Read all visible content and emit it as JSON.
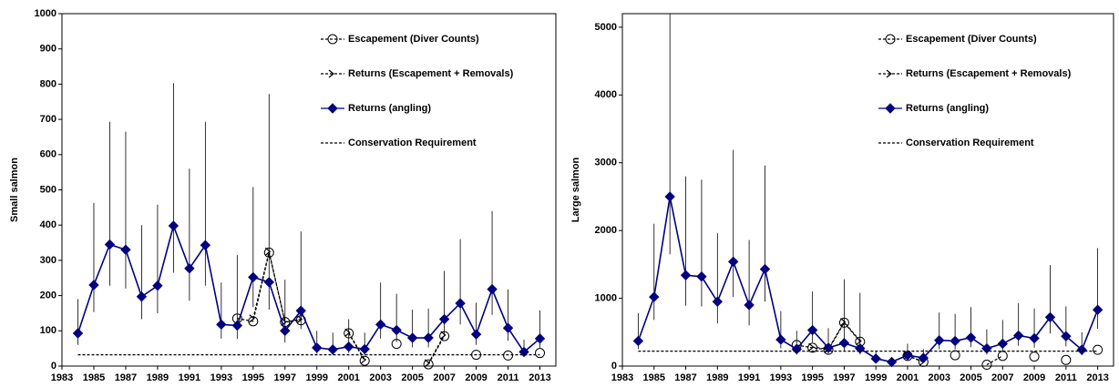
{
  "chart_data": [
    {
      "type": "line",
      "y_label": "Small salmon",
      "x": [
        1984,
        1985,
        1986,
        1987,
        1988,
        1989,
        1990,
        1991,
        1992,
        1993,
        1994,
        1995,
        1996,
        1997,
        1998,
        1999,
        2000,
        2001,
        2002,
        2003,
        2004,
        2005,
        2006,
        2007,
        2008,
        2009,
        2010,
        2011,
        2012,
        2013
      ],
      "xlim": [
        1983,
        2014
      ],
      "xticks": [
        1983,
        1985,
        1987,
        1989,
        1991,
        1993,
        1995,
        1997,
        1999,
        2001,
        2003,
        2005,
        2007,
        2009,
        2011,
        2013
      ],
      "ylim": [
        0,
        1000
      ],
      "yticks": [
        0,
        100,
        200,
        300,
        400,
        500,
        600,
        700,
        800,
        900,
        1000
      ],
      "legend": "upper right",
      "series": [
        {
          "name": "Escapement (Diver Counts)",
          "color": "#000000",
          "marker": "circle-open",
          "dash": true,
          "values": [
            null,
            null,
            null,
            null,
            null,
            null,
            null,
            null,
            null,
            null,
            135,
            127,
            322,
            125,
            130,
            null,
            null,
            93,
            15,
            null,
            63,
            null,
            5,
            85,
            null,
            32,
            null,
            30,
            null,
            37
          ]
        },
        {
          "name": "Returns (Escapement + Removals)",
          "color": "#000000",
          "marker": "arrow",
          "dash": true,
          "values": [
            null,
            null,
            null,
            null,
            null,
            null,
            null,
            null,
            null,
            null,
            null,
            135,
            325,
            125,
            133,
            null,
            null,
            95,
            18,
            null,
            null,
            null,
            8,
            88,
            null,
            null,
            null,
            null,
            null,
            null
          ]
        },
        {
          "name": "Returns (angling)",
          "color": "#000080",
          "marker": "diamond",
          "dash": false,
          "values": [
            93,
            230,
            345,
            330,
            197,
            228,
            398,
            277,
            343,
            118,
            115,
            252,
            238,
            100,
            157,
            52,
            47,
            55,
            48,
            118,
            102,
            80,
            80,
            133,
            178,
            90,
            218,
            108,
            40,
            78
          ],
          "upper": [
            190,
            463,
            693,
            665,
            400,
            458,
            803,
            560,
            693,
            237,
            315,
            508,
            772,
            245,
            382,
            100,
            95,
            133,
            95,
            237,
            205,
            160,
            163,
            270,
            360,
            180,
            440,
            217,
            75,
            158
          ],
          "lower": [
            60,
            153,
            228,
            220,
            133,
            150,
            265,
            185,
            228,
            78,
            77,
            167,
            160,
            67,
            105,
            35,
            32,
            37,
            32,
            78,
            68,
            53,
            53,
            90,
            118,
            60,
            145,
            72,
            27,
            52
          ]
        },
        {
          "name": "Conservation Requirement",
          "color": "#000000",
          "marker": "none",
          "dash": true,
          "values": [
            32,
            32,
            32,
            32,
            32,
            32,
            32,
            32,
            32,
            32,
            32,
            32,
            32,
            32,
            32,
            32,
            32,
            32,
            32,
            32,
            32,
            32,
            32,
            32,
            32,
            32,
            32,
            32,
            32,
            32
          ]
        }
      ]
    },
    {
      "type": "line",
      "y_label": "Large salmon",
      "x": [
        1984,
        1985,
        1986,
        1987,
        1988,
        1989,
        1990,
        1991,
        1992,
        1993,
        1994,
        1995,
        1996,
        1997,
        1998,
        1999,
        2000,
        2001,
        2002,
        2003,
        2004,
        2005,
        2006,
        2007,
        2008,
        2009,
        2010,
        2011,
        2012,
        2013
      ],
      "xlim": [
        1983,
        2014
      ],
      "xticks": [
        1983,
        1985,
        1987,
        1989,
        1991,
        1993,
        1995,
        1997,
        1999,
        2001,
        2003,
        2005,
        2007,
        2009,
        2011,
        2013
      ],
      "ylim": [
        0,
        5200
      ],
      "yticks": [
        0,
        1000,
        2000,
        3000,
        4000,
        5000
      ],
      "legend": "upper right",
      "series": [
        {
          "name": "Escapement (Diver Counts)",
          "color": "#000000",
          "marker": "circle-open",
          "dash": true,
          "values": [
            null,
            null,
            null,
            null,
            null,
            null,
            null,
            null,
            null,
            null,
            310,
            270,
            240,
            640,
            360,
            null,
            null,
            150,
            60,
            null,
            160,
            null,
            20,
            150,
            null,
            140,
            null,
            90,
            null,
            240
          ]
        },
        {
          "name": "Returns (Escapement + Removals)",
          "color": "#000000",
          "marker": "arrow",
          "dash": true,
          "values": [
            null,
            null,
            null,
            null,
            null,
            null,
            null,
            null,
            null,
            null,
            null,
            280,
            250,
            650,
            370,
            null,
            null,
            155,
            65,
            null,
            null,
            null,
            null,
            null,
            null,
            null,
            null,
            null,
            null,
            null
          ]
        },
        {
          "name": "Returns (angling)",
          "color": "#000080",
          "marker": "diamond",
          "dash": false,
          "values": [
            370,
            1020,
            2500,
            1340,
            1320,
            950,
            1540,
            900,
            1430,
            390,
            250,
            530,
            270,
            340,
            260,
            110,
            60,
            160,
            120,
            380,
            370,
            420,
            260,
            330,
            450,
            410,
            720,
            440,
            240,
            830
          ],
          "upper": [
            780,
            2100,
            5200,
            2800,
            2750,
            1960,
            3190,
            1860,
            2960,
            810,
            520,
            1100,
            560,
            1280,
            1080,
            230,
            130,
            330,
            250,
            790,
            770,
            870,
            540,
            680,
            930,
            850,
            1490,
            880,
            500,
            1740
          ],
          "lower": [
            250,
            680,
            1650,
            890,
            880,
            630,
            1020,
            600,
            950,
            260,
            170,
            350,
            180,
            230,
            170,
            75,
            40,
            105,
            80,
            250,
            245,
            280,
            170,
            220,
            300,
            270,
            480,
            290,
            160,
            550
          ]
        },
        {
          "name": "Conservation Requirement",
          "color": "#000000",
          "marker": "none",
          "dash": true,
          "values": [
            220,
            220,
            220,
            220,
            220,
            220,
            220,
            220,
            220,
            220,
            220,
            220,
            220,
            220,
            220,
            220,
            220,
            220,
            220,
            220,
            220,
            220,
            220,
            220,
            220,
            220,
            220,
            220,
            220,
            220
          ]
        }
      ]
    }
  ]
}
